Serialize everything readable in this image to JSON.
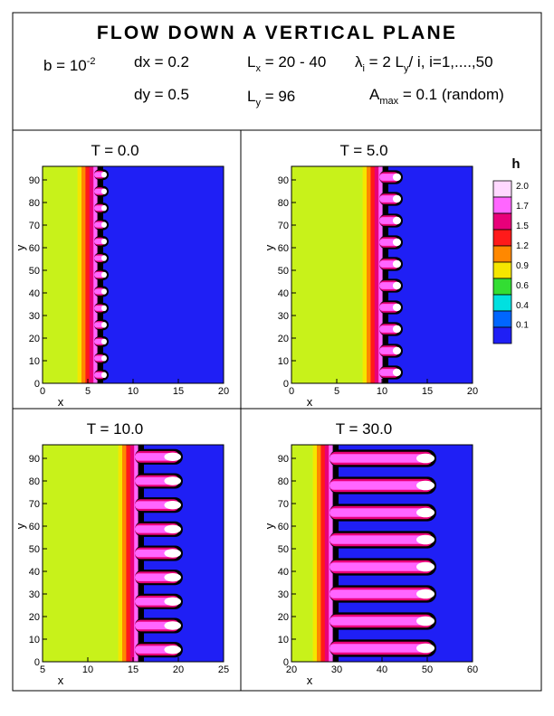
{
  "header": {
    "title": "FLOW DOWN A VERTICAL PLANE",
    "title_color": "#d81f26",
    "param_b": {
      "base": "b = 10",
      "exp": "-2"
    },
    "param_dx": "dx = 0.2",
    "param_dy": "dy = 0.5",
    "param_Lx": {
      "base": "L",
      "sub": "x",
      "rest": " = 20 - 40"
    },
    "param_Ly": {
      "base": "L",
      "sub": "y",
      "rest": " = 96"
    },
    "param_lambda": {
      "sym": "λ",
      "sub": "i",
      "mid": " = 2 L",
      "sub2": "y",
      "rest": "/ i,  i=1,....,50"
    },
    "param_A": {
      "base": "A",
      "sub": "max",
      "rest": " = 0.1 (random)"
    }
  },
  "legend": {
    "title": "h",
    "levels": [
      "2.0",
      "1.7",
      "1.5",
      "1.2",
      "0.9",
      "0.6",
      "0.4",
      "0.1"
    ],
    "colors": [
      "#ffd8ff",
      "#ff66ff",
      "#e8007a",
      "#ff1a1a",
      "#ff8800",
      "#f5e600",
      "#33dd33",
      "#00e0e0",
      "#0066ff",
      "#1f1ff5"
    ]
  },
  "chart_data": [
    {
      "type": "contour",
      "title": "T = 0.0",
      "xlabel": "x",
      "ylabel": "y",
      "xlim": [
        0,
        20
      ],
      "ylim": [
        0,
        96
      ],
      "xticks": [
        "0",
        "5",
        "10",
        "15",
        "20"
      ],
      "yticks": [
        "0",
        "10",
        "20",
        "30",
        "40",
        "50",
        "60",
        "70",
        "80",
        "90"
      ],
      "front_x": 6.5,
      "finger_length": 0.8,
      "finger_count": 13
    },
    {
      "type": "contour",
      "title": "T = 5.0",
      "xlabel": "x",
      "ylabel": "y",
      "xlim": [
        0,
        20
      ],
      "ylim": [
        0,
        96
      ],
      "xticks": [
        "0",
        "5",
        "10",
        "15",
        "20"
      ],
      "yticks": [
        "0",
        "10",
        "20",
        "30",
        "40",
        "50",
        "60",
        "70",
        "80",
        "90"
      ],
      "front_x": 10.5,
      "finger_length": 1.8,
      "finger_count": 10
    },
    {
      "type": "contour",
      "title": "T = 10.0",
      "xlabel": "x",
      "ylabel": "y",
      "xlim": [
        5,
        25
      ],
      "ylim": [
        0,
        96
      ],
      "xticks": [
        "5",
        "10",
        "15",
        "20",
        "25"
      ],
      "yticks": [
        "0",
        "10",
        "20",
        "30",
        "40",
        "50",
        "60",
        "70",
        "80",
        "90"
      ],
      "front_x": 16,
      "finger_length": 4.5,
      "finger_count": 9
    },
    {
      "type": "contour",
      "title": "T = 30.0",
      "xlabel": "x",
      "ylabel": "y",
      "xlim": [
        20,
        60
      ],
      "ylim": [
        0,
        96
      ],
      "xticks": [
        "20",
        "30",
        "40",
        "50",
        "60"
      ],
      "yticks": [
        "0",
        "10",
        "20",
        "30",
        "40",
        "50",
        "60",
        "70",
        "80",
        "90"
      ],
      "front_x": 30,
      "finger_length": 22,
      "finger_count": 8
    }
  ]
}
